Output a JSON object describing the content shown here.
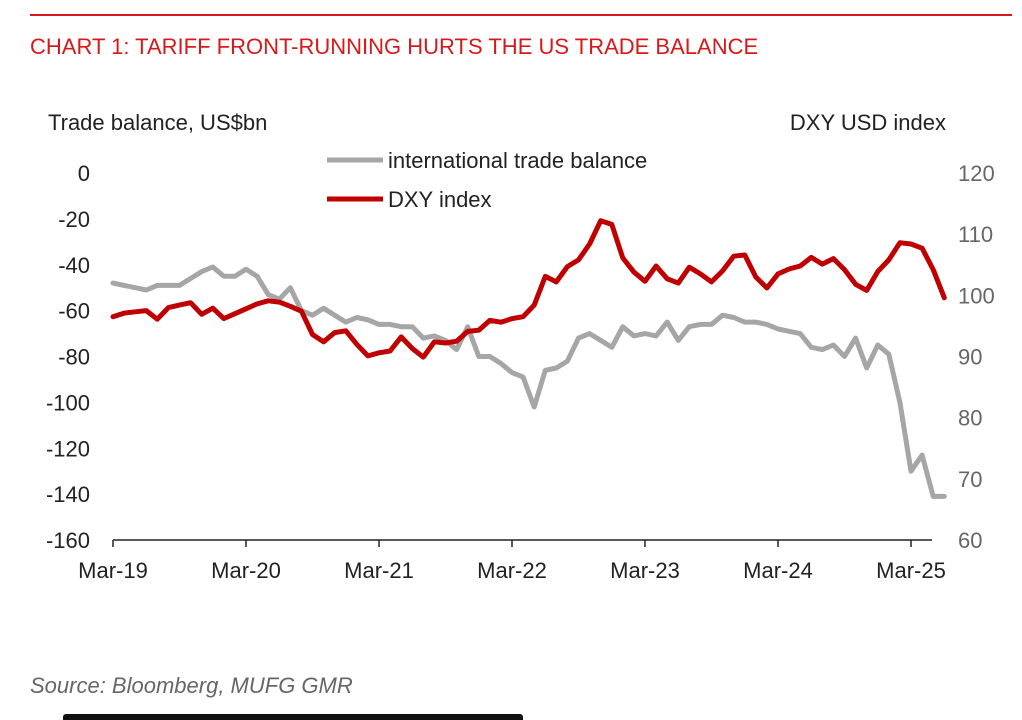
{
  "title": "CHART 1: TARIFF FRONT-RUNNING HURTS THE US TRADE BALANCE",
  "source": "Source: Bloomberg, MUFG GMR",
  "colors": {
    "accent": "#d7191c",
    "trade_series": "#a6a6a6",
    "dxy_series": "#c00000",
    "axis": "#222222"
  },
  "chart_data": {
    "type": "line",
    "title": "CHART 1: TARIFF FRONT-RUNNING HURTS THE US TRADE BALANCE",
    "y_left_label": "Trade balance, US$bn",
    "y_right_label": "DXY USD index",
    "ylim_left": [
      -160,
      0
    ],
    "ylim_right": [
      60,
      120
    ],
    "yticks_left": [
      0,
      -20,
      -40,
      -60,
      -80,
      -100,
      -120,
      -140,
      -160
    ],
    "yticks_right": [
      120,
      110,
      100,
      90,
      80,
      70,
      60
    ],
    "x_ticks": [
      "Mar-19",
      "Mar-20",
      "Mar-21",
      "Mar-22",
      "Mar-23",
      "Mar-24",
      "Mar-25"
    ],
    "x_start": "Mar-19",
    "legend_position": "top-center",
    "grid": false,
    "series": [
      {
        "name": "international trade balance",
        "axis": "left",
        "color": "#a6a6a6",
        "values": [
          -48,
          -49,
          -50,
          -51,
          -49,
          -49,
          -49,
          -46,
          -43,
          -41,
          -45,
          -45,
          -42,
          -45,
          -53,
          -55,
          -50,
          -60,
          -62,
          -59,
          -62,
          -65,
          -63,
          -64,
          -66,
          -66,
          -67,
          -67,
          -72,
          -71,
          -73,
          -77,
          -67,
          -80,
          -80,
          -83,
          -87,
          -89,
          -102,
          -86,
          -85,
          -82,
          -72,
          -70,
          -73,
          -76,
          -67,
          -71,
          -70,
          -71,
          -65,
          -73,
          -67,
          -66,
          -66,
          -62,
          -63,
          -65,
          -65,
          -66,
          -68,
          -69,
          -70,
          -76,
          -77,
          -75,
          -80,
          -72,
          -85,
          -75,
          -79,
          -100,
          -130,
          -123,
          -141,
          -141
        ]
      },
      {
        "name": "DXY index",
        "axis": "right",
        "color": "#c00000",
        "values": [
          96.5,
          97.1,
          97.3,
          97.5,
          96.1,
          98.0,
          98.4,
          98.8,
          96.9,
          97.9,
          96.2,
          97.0,
          97.8,
          98.6,
          99.1,
          98.9,
          98.2,
          97.4,
          93.6,
          92.4,
          93.9,
          94.2,
          92.0,
          90.1,
          90.6,
          90.9,
          93.2,
          91.3,
          89.9,
          92.4,
          92.2,
          92.5,
          94.1,
          94.3,
          95.9,
          95.6,
          96.2,
          96.5,
          98.4,
          103.1,
          102.2,
          104.7,
          105.8,
          108.4,
          112.2,
          111.6,
          106.1,
          103.8,
          102.3,
          104.8,
          102.7,
          102.0,
          104.6,
          103.5,
          102.2,
          104.0,
          106.4,
          106.6,
          103.0,
          101.2,
          103.5,
          104.3,
          104.8,
          106.2,
          105.1,
          106.0,
          104.2,
          101.8,
          100.8,
          103.9,
          105.8,
          108.6,
          108.4,
          107.7,
          104.2,
          99.6
        ]
      }
    ]
  }
}
